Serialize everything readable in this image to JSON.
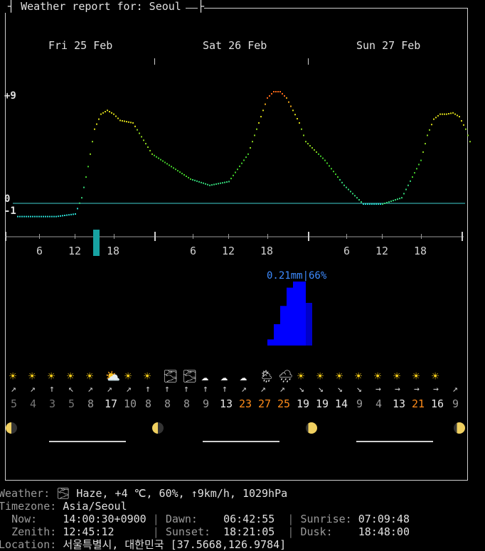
{
  "header": {
    "title": "Weather report for: Seoul"
  },
  "days": [
    "Fri 25 Feb",
    "Sat 26 Feb",
    "Sun 27 Feb"
  ],
  "temp_axis": {
    "max_label": "+9",
    "zero_label": "0",
    "min_label": "-1"
  },
  "hour_labels": [
    "6",
    "12",
    "18",
    "6",
    "12",
    "18",
    "6",
    "12",
    "18"
  ],
  "chart_data": {
    "type": "line",
    "title": "",
    "ylabel": "",
    "ylim": [
      -1,
      9
    ],
    "x_hours": [
      0,
      3,
      6,
      9,
      10,
      11,
      12,
      13,
      14,
      15,
      16,
      18,
      21,
      24,
      27,
      30,
      33,
      36,
      37,
      38,
      39,
      40,
      41,
      42,
      43,
      44,
      45,
      46,
      48,
      51,
      54,
      57,
      60,
      63,
      64,
      65,
      66,
      67,
      68,
      69,
      70,
      71
    ],
    "temperature": [
      -1,
      -1,
      -1,
      -0.8,
      0.5,
      3,
      6,
      7.2,
      7.5,
      7.2,
      6.7,
      6.5,
      4,
      3,
      2,
      1.5,
      1.8,
      4,
      5.5,
      7,
      8.5,
      9,
      9,
      8.5,
      7.5,
      6.5,
      5,
      4.5,
      3.5,
      1.5,
      0,
      0,
      0.5,
      3.5,
      5.5,
      6.8,
      7.2,
      7.2,
      7.3,
      7,
      6,
      4.5
    ],
    "precipitation": {
      "label": "0.21mm|66%",
      "unit": "mm",
      "bars": [
        0.02,
        0.07,
        0.13,
        0.19,
        0.21,
        0.21,
        0.14
      ]
    }
  },
  "forecast_slots": [
    {
      "icon": "☀",
      "arrow": "↗",
      "speed": "5",
      "speed_color": "#777777"
    },
    {
      "icon": "☀",
      "arrow": "↗",
      "speed": "4",
      "speed_color": "#777777"
    },
    {
      "icon": "☀",
      "arrow": "↑",
      "speed": "3",
      "speed_color": "#777777"
    },
    {
      "icon": "☀",
      "arrow": "↖",
      "speed": "5",
      "speed_color": "#777777"
    },
    {
      "icon": "☀",
      "arrow": "↗",
      "speed": "8",
      "speed_color": "#9a9a9a"
    },
    {
      "icon": "⛅",
      "arrow": "↗",
      "speed": "17",
      "speed_color": "#e8e8e8"
    },
    {
      "icon": "☀",
      "arrow": "↗",
      "speed": "10",
      "speed_color": "#9a9a9a"
    },
    {
      "icon": "☀",
      "arrow": "↑",
      "speed": "8",
      "speed_color": "#9a9a9a"
    },
    {
      "icon": "🌫",
      "arrow": "↑",
      "speed": "8",
      "speed_color": "#9a9a9a"
    },
    {
      "icon": "🌫",
      "arrow": "↑",
      "speed": "8",
      "speed_color": "#9a9a9a"
    },
    {
      "icon": "☁",
      "arrow": "↑",
      "speed": "9",
      "speed_color": "#9a9a9a"
    },
    {
      "icon": "☁",
      "arrow": "↑",
      "speed": "13",
      "speed_color": "#e8e8e8"
    },
    {
      "icon": "☁",
      "arrow": "↗",
      "speed": "23",
      "speed_color": "#ff8c1a"
    },
    {
      "icon": "🌦",
      "arrow": "↗",
      "speed": "27",
      "speed_color": "#ff8c1a"
    },
    {
      "icon": "🌧",
      "arrow": "↗",
      "speed": "25",
      "speed_color": "#ff8c1a"
    },
    {
      "icon": "☀",
      "arrow": "↘",
      "speed": "19",
      "speed_color": "#e8e8e8"
    },
    {
      "icon": "☀",
      "arrow": "↘",
      "speed": "19",
      "speed_color": "#e8e8e8"
    },
    {
      "icon": "☀",
      "arrow": "↘",
      "speed": "14",
      "speed_color": "#e8e8e8"
    },
    {
      "icon": "☀",
      "arrow": "↘",
      "speed": "9",
      "speed_color": "#9a9a9a"
    },
    {
      "icon": "☀",
      "arrow": "→",
      "speed": "4",
      "speed_color": "#9a9a9a"
    },
    {
      "icon": "☀",
      "arrow": "→",
      "speed": "13",
      "speed_color": "#e8e8e8"
    },
    {
      "icon": "☀",
      "arrow": "→",
      "speed": "21",
      "speed_color": "#ff8c1a"
    },
    {
      "icon": "☀",
      "arrow": "→",
      "speed": "16",
      "speed_color": "#e8e8e8"
    },
    {
      "icon": "",
      "arrow": "↗",
      "speed": "9",
      "speed_color": "#9a9a9a"
    }
  ],
  "current": {
    "weather_key": "Weather:",
    "weather_value": "🌫 Haze, +4 ℃, 60%, ↑9km/h, 1029hPa",
    "timezone_key": "Timezone:",
    "timezone_value": "Asia/Seoul",
    "now_key": "Now:",
    "now_value": "14:00:30+0900",
    "dawn_key": "Dawn:",
    "dawn_value": "06:42:55",
    "sunrise_key": "Sunrise:",
    "sunrise_value": "07:09:48",
    "zenith_key": "Zenith:",
    "zenith_value": "12:45:12",
    "sunset_key": "Sunset:",
    "sunset_value": "18:21:05",
    "dusk_key": "Dusk:",
    "dusk_value": "18:48:00",
    "location_key": "Location:",
    "location_value": "서울특별시, 대한민국 [37.5668,126.9784]"
  },
  "colors": {
    "zero_line": "#3fd0d0",
    "now_marker": "#17a2a2",
    "precip_bar": "#0000ff",
    "precip_label": "#3d8bff",
    "wind_high": "#ff8c1a"
  }
}
